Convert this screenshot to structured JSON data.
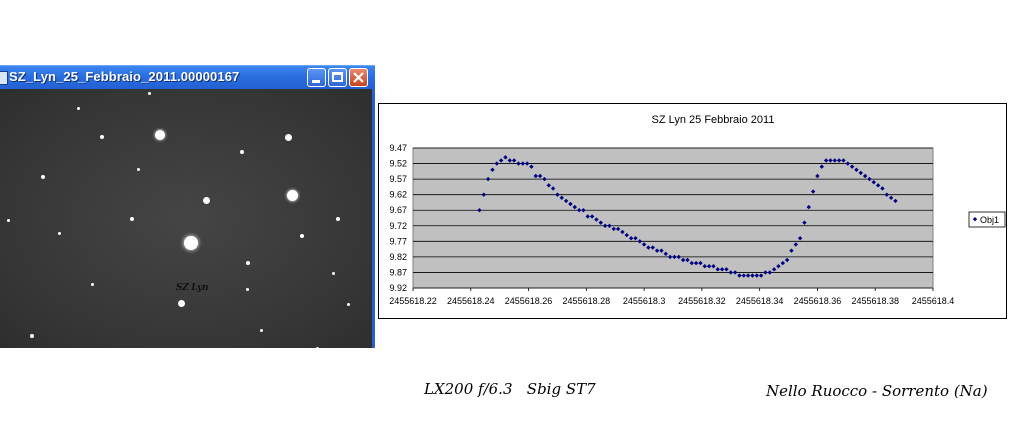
{
  "window": {
    "title": "SZ_Lyn_25_Febbraio_2011.00000167",
    "star_label": "SZ Lyn",
    "icon": "fits-image-icon"
  },
  "captions": {
    "left": "LX200 f/6.3   Sbig ST7",
    "right": "Nello Ruocco - Sorrento (Na)"
  },
  "colors": {
    "titlebar": "#2a6ee0",
    "plot_area": "#c0c0c0",
    "marker": "#000080"
  },
  "chart_data": {
    "type": "scatter",
    "title": "SZ Lyn 25 Febbraio 2011",
    "xlabel": "",
    "ylabel": "",
    "xlim": [
      2455618.22,
      2455618.4
    ],
    "ylim": [
      9.47,
      9.92
    ],
    "y_reversed": true,
    "x_ticks": [
      "2455618.22",
      "2455618.24",
      "2455618.26",
      "2455618.28",
      "2455618.3",
      "2455618.32",
      "2455618.34",
      "2455618.36",
      "2455618.38",
      "2455618.4"
    ],
    "y_ticks": [
      "9.47",
      "9.52",
      "9.57",
      "9.62",
      "9.67",
      "9.72",
      "9.77",
      "9.82",
      "9.87",
      "9.92"
    ],
    "grid": true,
    "legend_position": "right",
    "series": [
      {
        "name": "Obj1",
        "marker": "diamond",
        "x": [
          2455618.243,
          2455618.2445,
          2455618.246,
          2455618.2475,
          2455618.249,
          2455618.2505,
          2455618.252,
          2455618.2535,
          2455618.255,
          2455618.2565,
          2455618.258,
          2455618.2595,
          2455618.261,
          2455618.2625,
          2455618.264,
          2455618.2655,
          2455618.267,
          2455618.2685,
          2455618.27,
          2455618.2715,
          2455618.273,
          2455618.2745,
          2455618.276,
          2455618.2775,
          2455618.279,
          2455618.2805,
          2455618.282,
          2455618.2835,
          2455618.285,
          2455618.2865,
          2455618.288,
          2455618.2895,
          2455618.291,
          2455618.2925,
          2455618.294,
          2455618.2955,
          2455618.297,
          2455618.2985,
          2455618.3,
          2455618.3015,
          2455618.303,
          2455618.3045,
          2455618.306,
          2455618.3075,
          2455618.309,
          2455618.3105,
          2455618.312,
          2455618.3135,
          2455618.315,
          2455618.3165,
          2455618.318,
          2455618.3195,
          2455618.321,
          2455618.3225,
          2455618.324,
          2455618.3255,
          2455618.327,
          2455618.3285,
          2455618.33,
          2455618.3315,
          2455618.333,
          2455618.3345,
          2455618.336,
          2455618.3375,
          2455618.339,
          2455618.3405,
          2455618.342,
          2455618.3435,
          2455618.345,
          2455618.3465,
          2455618.348,
          2455618.3495,
          2455618.351,
          2455618.3525,
          2455618.354,
          2455618.3555,
          2455618.357,
          2455618.3585,
          2455618.36,
          2455618.3615,
          2455618.363,
          2455618.3645,
          2455618.366,
          2455618.3675,
          2455618.369,
          2455618.3705,
          2455618.372,
          2455618.3735,
          2455618.375,
          2455618.3765,
          2455618.378,
          2455618.3795,
          2455618.381,
          2455618.3825,
          2455618.384,
          2455618.3855,
          2455618.387
        ],
        "y": [
          9.67,
          9.62,
          9.57,
          9.54,
          9.52,
          9.51,
          9.5,
          9.51,
          9.51,
          9.52,
          9.52,
          9.52,
          9.53,
          9.56,
          9.56,
          9.57,
          9.59,
          9.6,
          9.62,
          9.63,
          9.64,
          9.65,
          9.66,
          9.67,
          9.67,
          9.69,
          9.69,
          9.7,
          9.71,
          9.72,
          9.72,
          9.73,
          9.73,
          9.74,
          9.75,
          9.76,
          9.76,
          9.77,
          9.78,
          9.79,
          9.79,
          9.8,
          9.8,
          9.81,
          9.82,
          9.82,
          9.82,
          9.83,
          9.83,
          9.84,
          9.84,
          9.84,
          9.85,
          9.85,
          9.85,
          9.86,
          9.86,
          9.86,
          9.87,
          9.87,
          9.88,
          9.88,
          9.88,
          9.88,
          9.88,
          9.88,
          9.87,
          9.87,
          9.86,
          9.85,
          9.84,
          9.83,
          9.8,
          9.78,
          9.76,
          9.71,
          9.66,
          9.61,
          9.56,
          9.53,
          9.51,
          9.51,
          9.51,
          9.51,
          9.51,
          9.52,
          9.53,
          9.54,
          9.55,
          9.56,
          9.57,
          9.58,
          9.59,
          9.6,
          9.62,
          9.63,
          9.64
        ]
      }
    ]
  }
}
